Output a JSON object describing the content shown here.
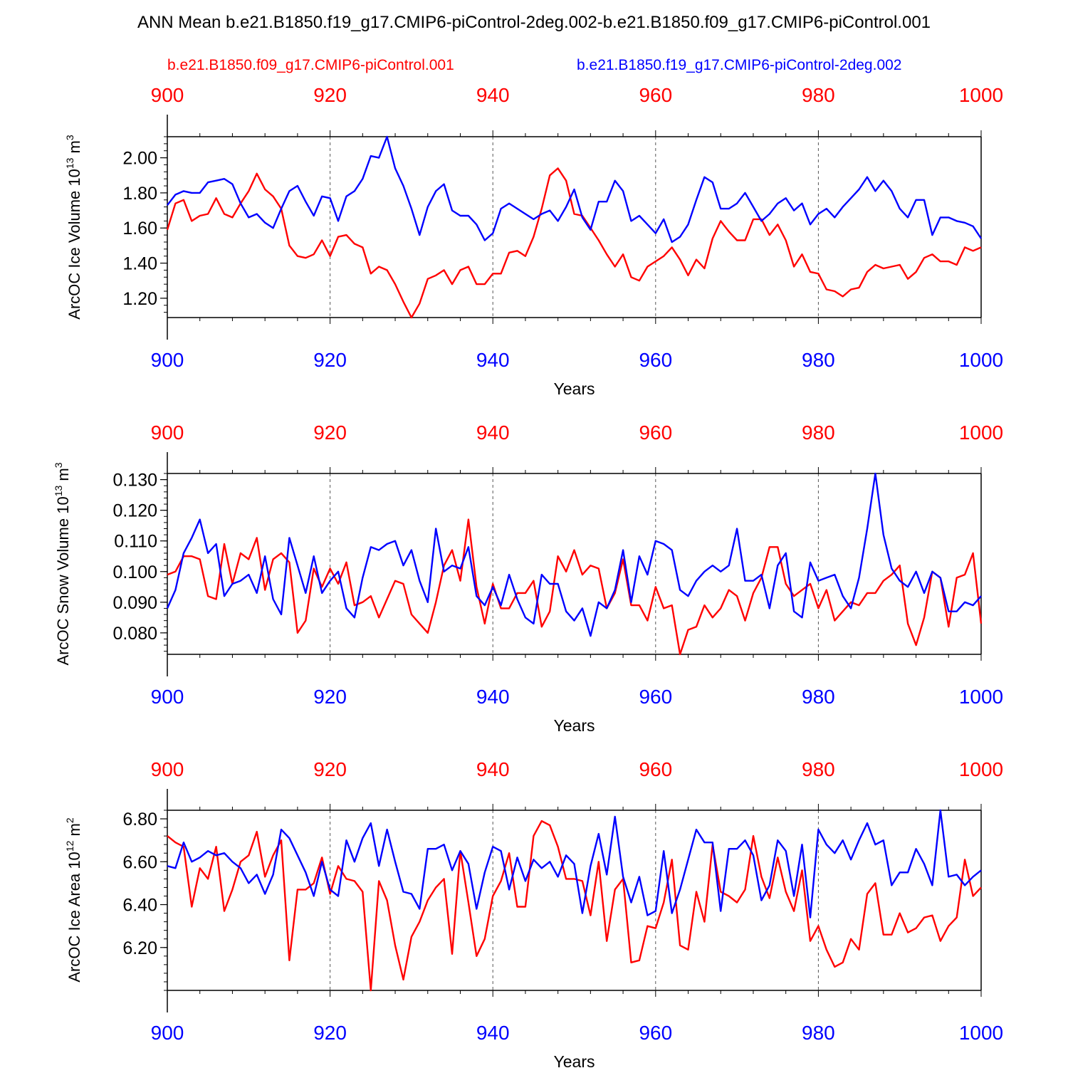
{
  "title": "ANN Mean b.e21.B1850.f19_g17.CMIP6-piControl-2deg.002-b.e21.B1850.f09_g17.CMIP6-piControl.001",
  "legend": {
    "red_label": "b.e21.B1850.f09_g17.CMIP6-piControl.001",
    "blue_label": "b.e21.B1850.f19_g17.CMIP6-piControl-2deg.002"
  },
  "colors": {
    "red": "#ff0000",
    "blue": "#0000ff",
    "axis": "#000000",
    "grid": "#555555"
  },
  "chart_data": [
    {
      "type": "line",
      "ylabel_main": "ArcOC Ice Volume 10",
      "ylabel_exp": "13",
      "ylabel_unit": " m",
      "ylabel_unit_exp": "3",
      "xlabel": "Years",
      "xlim": [
        900,
        1000
      ],
      "ylim": [
        1.09,
        2.12
      ],
      "y_ticks": [
        1.2,
        1.4,
        1.6,
        1.8,
        2.0
      ],
      "y_tick_labels": [
        "1.20",
        "1.40",
        "1.60",
        "1.80",
        "2.00"
      ],
      "x_ticks": [
        900,
        920,
        940,
        960,
        980,
        1000
      ],
      "x_tick_labels": [
        "900",
        "920",
        "940",
        "960",
        "980",
        "1000"
      ],
      "series": [
        {
          "name": "b.e21.B1850.f09_g17.CMIP6-piControl.001",
          "color": "red",
          "values": [
            1.59,
            1.74,
            1.76,
            1.64,
            1.67,
            1.68,
            1.77,
            1.68,
            1.66,
            1.74,
            1.81,
            1.91,
            1.82,
            1.78,
            1.71,
            1.5,
            1.44,
            1.43,
            1.45,
            1.53,
            1.44,
            1.55,
            1.56,
            1.51,
            1.49,
            1.34,
            1.38,
            1.36,
            1.28,
            1.18,
            1.09,
            1.17,
            1.31,
            1.33,
            1.36,
            1.28,
            1.36,
            1.38,
            1.28,
            1.28,
            1.34,
            1.34,
            1.46,
            1.47,
            1.44,
            1.55,
            1.71,
            1.9,
            1.94,
            1.87,
            1.68,
            1.67,
            1.6,
            1.53,
            1.45,
            1.38,
            1.45,
            1.32,
            1.3,
            1.38,
            1.41,
            1.44,
            1.49,
            1.42,
            1.33,
            1.42,
            1.37,
            1.54,
            1.64,
            1.58,
            1.53,
            1.53,
            1.65,
            1.65,
            1.56,
            1.62,
            1.53,
            1.38,
            1.45,
            1.35,
            1.34,
            1.25,
            1.24,
            1.21,
            1.25,
            1.26,
            1.35,
            1.39,
            1.37,
            1.38,
            1.39,
            1.31,
            1.35,
            1.43,
            1.45,
            1.41,
            1.41,
            1.39,
            1.49,
            1.47,
            1.49
          ]
        },
        {
          "name": "b.e21.B1850.f19_g17.CMIP6-piControl-2deg.002",
          "color": "blue",
          "values": [
            1.73,
            1.79,
            1.81,
            1.8,
            1.8,
            1.86,
            1.87,
            1.88,
            1.85,
            1.74,
            1.66,
            1.68,
            1.63,
            1.6,
            1.71,
            1.81,
            1.84,
            1.75,
            1.67,
            1.78,
            1.77,
            1.64,
            1.78,
            1.81,
            1.88,
            2.01,
            2.0,
            2.12,
            1.94,
            1.84,
            1.71,
            1.56,
            1.72,
            1.81,
            1.85,
            1.7,
            1.67,
            1.67,
            1.62,
            1.53,
            1.57,
            1.71,
            1.74,
            1.71,
            1.68,
            1.65,
            1.68,
            1.7,
            1.64,
            1.72,
            1.82,
            1.66,
            1.59,
            1.75,
            1.75,
            1.87,
            1.81,
            1.64,
            1.67,
            1.62,
            1.57,
            1.65,
            1.52,
            1.55,
            1.62,
            1.76,
            1.89,
            1.86,
            1.71,
            1.71,
            1.74,
            1.8,
            1.72,
            1.64,
            1.68,
            1.74,
            1.77,
            1.7,
            1.74,
            1.62,
            1.68,
            1.71,
            1.66,
            1.72,
            1.77,
            1.82,
            1.89,
            1.81,
            1.87,
            1.81,
            1.71,
            1.66,
            1.76,
            1.76,
            1.56,
            1.66,
            1.66,
            1.64,
            1.63,
            1.61,
            1.54
          ]
        }
      ]
    },
    {
      "type": "line",
      "ylabel_main": "ArcOC Snow Volume 10",
      "ylabel_exp": "13",
      "ylabel_unit": " m",
      "ylabel_unit_exp": "3",
      "xlabel": "Years",
      "xlim": [
        900,
        1000
      ],
      "ylim": [
        0.073,
        0.132
      ],
      "y_ticks": [
        0.08,
        0.09,
        0.1,
        0.11,
        0.12,
        0.13
      ],
      "y_tick_labels": [
        "0.080",
        "0.090",
        "0.100",
        "0.110",
        "0.120",
        "0.130"
      ],
      "x_ticks": [
        900,
        920,
        940,
        960,
        980,
        1000
      ],
      "x_tick_labels": [
        "900",
        "920",
        "940",
        "960",
        "980",
        "1000"
      ],
      "series": [
        {
          "name": "b.e21.B1850.f09_g17.CMIP6-piControl.001",
          "color": "red",
          "values": [
            0.099,
            0.1,
            0.105,
            0.105,
            0.104,
            0.092,
            0.091,
            0.109,
            0.096,
            0.106,
            0.104,
            0.111,
            0.094,
            0.104,
            0.106,
            0.103,
            0.08,
            0.084,
            0.101,
            0.095,
            0.101,
            0.096,
            0.103,
            0.089,
            0.09,
            0.092,
            0.085,
            0.091,
            0.097,
            0.096,
            0.086,
            0.083,
            0.08,
            0.09,
            0.102,
            0.107,
            0.097,
            0.117,
            0.095,
            0.083,
            0.096,
            0.088,
            0.088,
            0.093,
            0.093,
            0.097,
            0.082,
            0.087,
            0.105,
            0.1,
            0.107,
            0.099,
            0.102,
            0.101,
            0.088,
            0.093,
            0.104,
            0.089,
            0.089,
            0.084,
            0.095,
            0.088,
            0.089,
            0.073,
            0.081,
            0.082,
            0.089,
            0.085,
            0.088,
            0.094,
            0.092,
            0.084,
            0.093,
            0.098,
            0.108,
            0.108,
            0.096,
            0.092,
            0.094,
            0.096,
            0.088,
            0.094,
            0.084,
            0.087,
            0.09,
            0.089,
            0.093,
            0.093,
            0.097,
            0.099,
            0.102,
            0.083,
            0.076,
            0.085,
            0.1,
            0.098,
            0.082,
            0.098,
            0.099,
            0.106,
            0.083
          ]
        },
        {
          "name": "b.e21.B1850.f19_g17.CMIP6-piControl-2deg.002",
          "color": "blue",
          "values": [
            0.088,
            0.094,
            0.106,
            0.111,
            0.117,
            0.106,
            0.109,
            0.092,
            0.096,
            0.097,
            0.099,
            0.093,
            0.105,
            0.091,
            0.086,
            0.111,
            0.102,
            0.093,
            0.105,
            0.093,
            0.097,
            0.1,
            0.088,
            0.085,
            0.098,
            0.108,
            0.107,
            0.109,
            0.11,
            0.102,
            0.107,
            0.097,
            0.09,
            0.114,
            0.1,
            0.102,
            0.101,
            0.108,
            0.092,
            0.089,
            0.095,
            0.089,
            0.099,
            0.091,
            0.085,
            0.083,
            0.099,
            0.096,
            0.096,
            0.087,
            0.084,
            0.088,
            0.079,
            0.09,
            0.088,
            0.094,
            0.107,
            0.09,
            0.105,
            0.099,
            0.11,
            0.109,
            0.107,
            0.094,
            0.092,
            0.097,
            0.1,
            0.102,
            0.1,
            0.102,
            0.114,
            0.097,
            0.097,
            0.099,
            0.088,
            0.102,
            0.106,
            0.087,
            0.085,
            0.103,
            0.097,
            0.098,
            0.099,
            0.092,
            0.088,
            0.098,
            0.114,
            0.132,
            0.112,
            0.101,
            0.097,
            0.095,
            0.1,
            0.093,
            0.1,
            0.098,
            0.087,
            0.087,
            0.09,
            0.089,
            0.092
          ]
        }
      ]
    },
    {
      "type": "line",
      "ylabel_main": "ArcOC Ice Area 10",
      "ylabel_exp": "12",
      "ylabel_unit": " m",
      "ylabel_unit_exp": "2",
      "xlabel": "Years",
      "xlim": [
        900,
        1000
      ],
      "ylim": [
        6.0,
        6.84
      ],
      "y_ticks": [
        6.2,
        6.4,
        6.6,
        6.8
      ],
      "y_tick_labels": [
        "6.20",
        "6.40",
        "6.60",
        "6.80"
      ],
      "x_ticks": [
        900,
        920,
        940,
        960,
        980,
        1000
      ],
      "x_tick_labels": [
        "900",
        "920",
        "940",
        "960",
        "980",
        "1000"
      ],
      "series": [
        {
          "name": "b.e21.B1850.f09_g17.CMIP6-piControl.001",
          "color": "red",
          "values": [
            6.72,
            6.69,
            6.67,
            6.39,
            6.57,
            6.52,
            6.67,
            6.37,
            6.47,
            6.6,
            6.63,
            6.74,
            6.53,
            6.63,
            6.7,
            6.14,
            6.47,
            6.47,
            6.5,
            6.62,
            6.45,
            6.58,
            6.52,
            6.51,
            6.46,
            6.0,
            6.51,
            6.42,
            6.21,
            6.05,
            6.25,
            6.32,
            6.42,
            6.48,
            6.52,
            6.17,
            6.65,
            6.41,
            6.16,
            6.24,
            6.44,
            6.51,
            6.64,
            6.39,
            6.39,
            6.72,
            6.79,
            6.77,
            6.67,
            6.52,
            6.52,
            6.51,
            6.35,
            6.6,
            6.23,
            6.47,
            6.52,
            6.13,
            6.14,
            6.3,
            6.29,
            6.41,
            6.61,
            6.21,
            6.19,
            6.46,
            6.32,
            6.68,
            6.46,
            6.44,
            6.41,
            6.47,
            6.72,
            6.53,
            6.43,
            6.62,
            6.46,
            6.37,
            6.56,
            6.23,
            6.3,
            6.19,
            6.11,
            6.13,
            6.24,
            6.19,
            6.45,
            6.5,
            6.26,
            6.26,
            6.36,
            6.27,
            6.29,
            6.34,
            6.35,
            6.23,
            6.3,
            6.34,
            6.61,
            6.44,
            6.48
          ]
        },
        {
          "name": "b.e21.B1850.f19_g17.CMIP6-piControl-2deg.002",
          "color": "blue",
          "values": [
            6.58,
            6.57,
            6.69,
            6.6,
            6.62,
            6.65,
            6.63,
            6.64,
            6.6,
            6.57,
            6.5,
            6.54,
            6.45,
            6.54,
            6.75,
            6.71,
            6.63,
            6.55,
            6.44,
            6.6,
            6.47,
            6.44,
            6.7,
            6.6,
            6.71,
            6.78,
            6.58,
            6.75,
            6.6,
            6.46,
            6.45,
            6.38,
            6.66,
            6.66,
            6.68,
            6.56,
            6.65,
            6.59,
            6.38,
            6.55,
            6.67,
            6.65,
            6.47,
            6.62,
            6.51,
            6.61,
            6.57,
            6.6,
            6.53,
            6.63,
            6.59,
            6.36,
            6.58,
            6.73,
            6.54,
            6.81,
            6.53,
            6.41,
            6.53,
            6.35,
            6.37,
            6.65,
            6.36,
            6.47,
            6.61,
            6.75,
            6.69,
            6.69,
            6.37,
            6.66,
            6.66,
            6.7,
            6.63,
            6.42,
            6.49,
            6.7,
            6.65,
            6.44,
            6.68,
            6.34,
            6.75,
            6.68,
            6.64,
            6.7,
            6.61,
            6.7,
            6.78,
            6.68,
            6.7,
            6.49,
            6.55,
            6.55,
            6.66,
            6.59,
            6.49,
            6.84,
            6.53,
            6.54,
            6.49,
            6.53,
            6.56
          ]
        }
      ]
    }
  ]
}
